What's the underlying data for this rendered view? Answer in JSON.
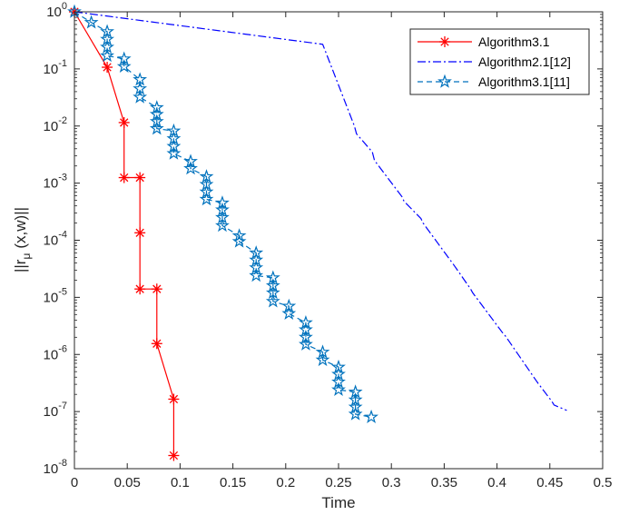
{
  "chart_data": {
    "type": "line",
    "xlabel": "Time",
    "ylabel_main": "||r",
    "ylabel_sub": "μ",
    "ylabel_rest": "(x,w)||",
    "xlim": [
      0,
      0.5
    ],
    "ylim": [
      1e-08,
      1
    ],
    "yscale": "log",
    "x_ticks": [
      "0",
      "0.05",
      "0.1",
      "0.15",
      "0.2",
      "0.25",
      "0.3",
      "0.35",
      "0.4",
      "0.45",
      "0.5"
    ],
    "y_ticks": [
      {
        "base": "10",
        "exp": "0"
      },
      {
        "base": "10",
        "exp": "-1"
      },
      {
        "base": "10",
        "exp": "-2"
      },
      {
        "base": "10",
        "exp": "-3"
      },
      {
        "base": "10",
        "exp": "-4"
      },
      {
        "base": "10",
        "exp": "-5"
      },
      {
        "base": "10",
        "exp": "-6"
      },
      {
        "base": "10",
        "exp": "-7"
      },
      {
        "base": "10",
        "exp": "-8"
      }
    ],
    "legend_position": "top-right",
    "series": [
      {
        "name": "Algorithm3.1",
        "color": "#ff0000",
        "line": "solid",
        "marker": "asterisk",
        "x": [
          0,
          0.031,
          0.047,
          0.047,
          0.062,
          0.062,
          0.062,
          0.078,
          0.078,
          0.094,
          0.094
        ],
        "y": [
          1,
          0.107,
          0.0115,
          0.00125,
          0.00125,
          0.000135,
          1.4e-05,
          1.4e-05,
          1.55e-06,
          1.65e-07,
          1.7e-08
        ]
      },
      {
        "name": "Algorithm2.1[12]",
        "color": "#0000ff",
        "line": "dashdot",
        "marker": "none",
        "x": [
          0,
          0.235,
          0.265,
          0.267,
          0.282,
          0.284,
          0.31,
          0.312,
          0.328,
          0.33,
          0.36,
          0.362,
          0.375,
          0.377,
          0.406,
          0.408,
          0.437,
          0.439,
          0.452,
          0.454,
          0.466
        ],
        "y": [
          1,
          0.27,
          0.01,
          0.0073,
          0.0035,
          0.0025,
          0.00058,
          0.00048,
          0.00024,
          0.0002,
          3.5e-05,
          3.1e-05,
          1.4e-05,
          1.2e-05,
          2.3e-06,
          2.1e-06,
          3.5e-07,
          3.1e-07,
          1.5e-07,
          1.3e-07,
          1.05e-07
        ]
      },
      {
        "name": "Algorithm3.1[11]",
        "color": "#0072bd",
        "line": "dashed",
        "marker": "pentagram",
        "x": [
          0,
          0.016,
          0.031,
          0.031,
          0.031,
          0.031,
          0.047,
          0.047,
          0.062,
          0.062,
          0.062,
          0.078,
          0.078,
          0.078,
          0.078,
          0.094,
          0.094,
          0.094,
          0.094,
          0.11,
          0.11,
          0.125,
          0.125,
          0.125,
          0.125,
          0.14,
          0.14,
          0.14,
          0.14,
          0.156,
          0.156,
          0.172,
          0.172,
          0.172,
          0.172,
          0.188,
          0.188,
          0.188,
          0.188,
          0.203,
          0.203,
          0.219,
          0.219,
          0.219,
          0.219,
          0.235,
          0.235,
          0.25,
          0.25,
          0.25,
          0.25,
          0.266,
          0.266,
          0.266,
          0.266,
          0.281
        ],
        "y": [
          1,
          0.65,
          0.45,
          0.33,
          0.24,
          0.17,
          0.15,
          0.11,
          0.065,
          0.045,
          0.032,
          0.021,
          0.016,
          0.012,
          0.009,
          0.0082,
          0.006,
          0.0044,
          0.0033,
          0.0024,
          0.0018,
          0.0013,
          0.00095,
          0.0007,
          0.00052,
          0.00045,
          0.00034,
          0.00025,
          0.00018,
          0.00012,
          9.5e-05,
          6e-05,
          4.5e-05,
          3.3e-05,
          2.4e-05,
          2.2e-05,
          1.6e-05,
          1.2e-05,
          8.5e-06,
          7e-06,
          5.2e-06,
          3.6e-06,
          2.7e-06,
          2e-06,
          1.5e-06,
          1.1e-06,
          8e-07,
          6e-07,
          4.5e-07,
          3.3e-07,
          2.4e-07,
          2.2e-07,
          1.6e-07,
          1.2e-07,
          9e-08,
          8e-08
        ]
      }
    ]
  }
}
